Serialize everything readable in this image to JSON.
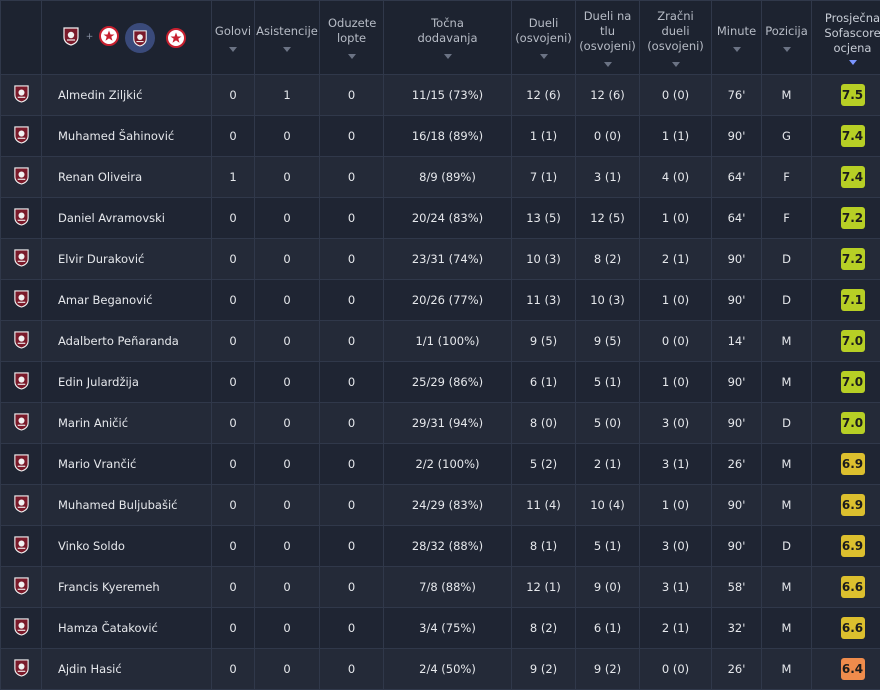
{
  "header": {
    "columns": [
      {
        "key": "goals",
        "label": "Golovi"
      },
      {
        "key": "assists",
        "label": "Asistencije"
      },
      {
        "key": "tackles",
        "label": "Oduzete lopte"
      },
      {
        "key": "passes",
        "label": "Točna dodavanja"
      },
      {
        "key": "duels",
        "label": "Dueli (osvojeni)"
      },
      {
        "key": "ground",
        "label": "Dueli na tlu (osvojeni)"
      },
      {
        "key": "aerial",
        "label": "Zračni dueli (osvojeni)"
      },
      {
        "key": "minutes",
        "label": "Minute"
      },
      {
        "key": "position",
        "label": "Pozicija"
      },
      {
        "key": "rating",
        "label": "Prosječna Sofascore ocjena"
      }
    ],
    "team_filter": {
      "plus": "+"
    }
  },
  "icons": {
    "home_crest": "fk-sarajevo-crest-icon",
    "away_crest": "red-star-crest-icon",
    "sort": "chevron-down-icon"
  },
  "colors": {
    "rating_high": "#b7cf25",
    "rating_mid": "#dcbf2e",
    "rating_low": "#ef8c4c",
    "sort_active": "#7b95ff"
  },
  "players": [
    {
      "name": "Almedin Ziljkić",
      "goals": "0",
      "assists": "1",
      "tackles": "0",
      "passes": "11/15 (73%)",
      "duels": "12 (6)",
      "ground": "12 (6)",
      "aerial": "0 (0)",
      "minutes": "76'",
      "position": "M",
      "rating": "7.5"
    },
    {
      "name": "Muhamed Šahinović",
      "goals": "0",
      "assists": "0",
      "tackles": "0",
      "passes": "16/18 (89%)",
      "duels": "1 (1)",
      "ground": "0 (0)",
      "aerial": "1 (1)",
      "minutes": "90'",
      "position": "G",
      "rating": "7.4"
    },
    {
      "name": "Renan Oliveira",
      "goals": "1",
      "assists": "0",
      "tackles": "0",
      "passes": "8/9 (89%)",
      "duels": "7 (1)",
      "ground": "3 (1)",
      "aerial": "4 (0)",
      "minutes": "64'",
      "position": "F",
      "rating": "7.4"
    },
    {
      "name": "Daniel Avramovski",
      "goals": "0",
      "assists": "0",
      "tackles": "0",
      "passes": "20/24 (83%)",
      "duels": "13 (5)",
      "ground": "12 (5)",
      "aerial": "1 (0)",
      "minutes": "64'",
      "position": "F",
      "rating": "7.2"
    },
    {
      "name": "Elvir Duraković",
      "goals": "0",
      "assists": "0",
      "tackles": "0",
      "passes": "23/31 (74%)",
      "duels": "10 (3)",
      "ground": "8 (2)",
      "aerial": "2 (1)",
      "minutes": "90'",
      "position": "D",
      "rating": "7.2"
    },
    {
      "name": "Amar Beganović",
      "goals": "0",
      "assists": "0",
      "tackles": "0",
      "passes": "20/26 (77%)",
      "duels": "11 (3)",
      "ground": "10 (3)",
      "aerial": "1 (0)",
      "minutes": "90'",
      "position": "D",
      "rating": "7.1"
    },
    {
      "name": "Adalberto Peñaranda",
      "goals": "0",
      "assists": "0",
      "tackles": "0",
      "passes": "1/1 (100%)",
      "duels": "9 (5)",
      "ground": "9 (5)",
      "aerial": "0 (0)",
      "minutes": "14'",
      "position": "M",
      "rating": "7.0"
    },
    {
      "name": "Edin Julardžija",
      "goals": "0",
      "assists": "0",
      "tackles": "0",
      "passes": "25/29 (86%)",
      "duels": "6 (1)",
      "ground": "5 (1)",
      "aerial": "1 (0)",
      "minutes": "90'",
      "position": "M",
      "rating": "7.0"
    },
    {
      "name": "Marin Aničić",
      "goals": "0",
      "assists": "0",
      "tackles": "0",
      "passes": "29/31 (94%)",
      "duels": "8 (0)",
      "ground": "5 (0)",
      "aerial": "3 (0)",
      "minutes": "90'",
      "position": "D",
      "rating": "7.0"
    },
    {
      "name": "Mario Vrančić",
      "goals": "0",
      "assists": "0",
      "tackles": "0",
      "passes": "2/2 (100%)",
      "duels": "5 (2)",
      "ground": "2 (1)",
      "aerial": "3 (1)",
      "minutes": "26'",
      "position": "M",
      "rating": "6.9"
    },
    {
      "name": "Muhamed Buljubašić",
      "goals": "0",
      "assists": "0",
      "tackles": "0",
      "passes": "24/29 (83%)",
      "duels": "11 (4)",
      "ground": "10 (4)",
      "aerial": "1 (0)",
      "minutes": "90'",
      "position": "M",
      "rating": "6.9"
    },
    {
      "name": "Vinko Soldo",
      "goals": "0",
      "assists": "0",
      "tackles": "0",
      "passes": "28/32 (88%)",
      "duels": "8 (1)",
      "ground": "5 (1)",
      "aerial": "3 (0)",
      "minutes": "90'",
      "position": "D",
      "rating": "6.9"
    },
    {
      "name": "Francis Kyeremeh",
      "goals": "0",
      "assists": "0",
      "tackles": "0",
      "passes": "7/8 (88%)",
      "duels": "12 (1)",
      "ground": "9 (0)",
      "aerial": "3 (1)",
      "minutes": "58'",
      "position": "M",
      "rating": "6.6"
    },
    {
      "name": "Hamza Čataković",
      "goals": "0",
      "assists": "0",
      "tackles": "0",
      "passes": "3/4 (75%)",
      "duels": "8 (2)",
      "ground": "6 (1)",
      "aerial": "2 (1)",
      "minutes": "32'",
      "position": "M",
      "rating": "6.6"
    },
    {
      "name": "Ajdin Hasić",
      "goals": "0",
      "assists": "0",
      "tackles": "0",
      "passes": "2/4 (50%)",
      "duels": "9 (2)",
      "ground": "9 (2)",
      "aerial": "0 (0)",
      "minutes": "26'",
      "position": "M",
      "rating": "6.4"
    }
  ]
}
